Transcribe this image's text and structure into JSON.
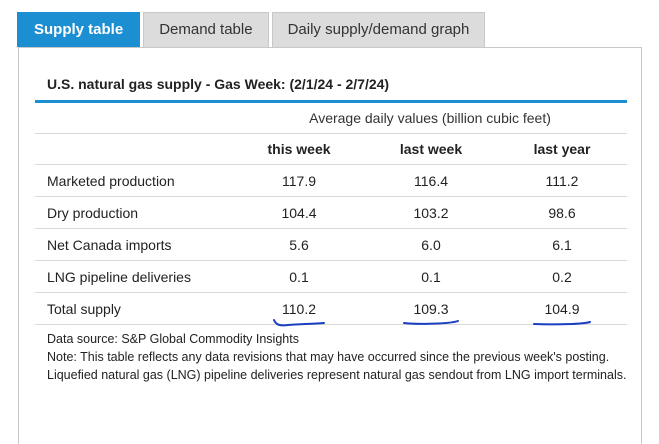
{
  "tabs": [
    {
      "label": "Supply table",
      "active": true
    },
    {
      "label": "Demand table",
      "active": false
    },
    {
      "label": "Daily supply/demand graph",
      "active": false
    }
  ],
  "panel": {
    "title": "U.S. natural gas supply - Gas Week: (2/1/24 - 2/7/24)",
    "subheading": "Average daily values (billion cubic feet)",
    "columns": [
      "this week",
      "last week",
      "last year"
    ],
    "rows": [
      {
        "label": "Marketed production",
        "values": [
          "117.9",
          "116.4",
          "111.2"
        ]
      },
      {
        "label": "Dry production",
        "values": [
          "104.4",
          "103.2",
          "98.6"
        ]
      },
      {
        "label": "Net Canada imports",
        "values": [
          "5.6",
          "6.0",
          "6.1"
        ]
      },
      {
        "label": "LNG pipeline deliveries",
        "values": [
          "0.1",
          "0.1",
          "0.2"
        ]
      },
      {
        "label": "Total supply",
        "values": [
          "110.2",
          "109.3",
          "104.9"
        ]
      }
    ],
    "source": "Data source: S&P Global Commodity Insights",
    "note": "Note: This table reflects any data revisions that may have occurred since the previous week's posting. Liquefied natural gas (LNG) pipeline deliveries represent natural gas sendout from LNG import terminals."
  },
  "colors": {
    "accent": "#1b8fd1",
    "tab_inactive": "#dcdcdc",
    "annotation_ink": "#1a3fc0"
  }
}
